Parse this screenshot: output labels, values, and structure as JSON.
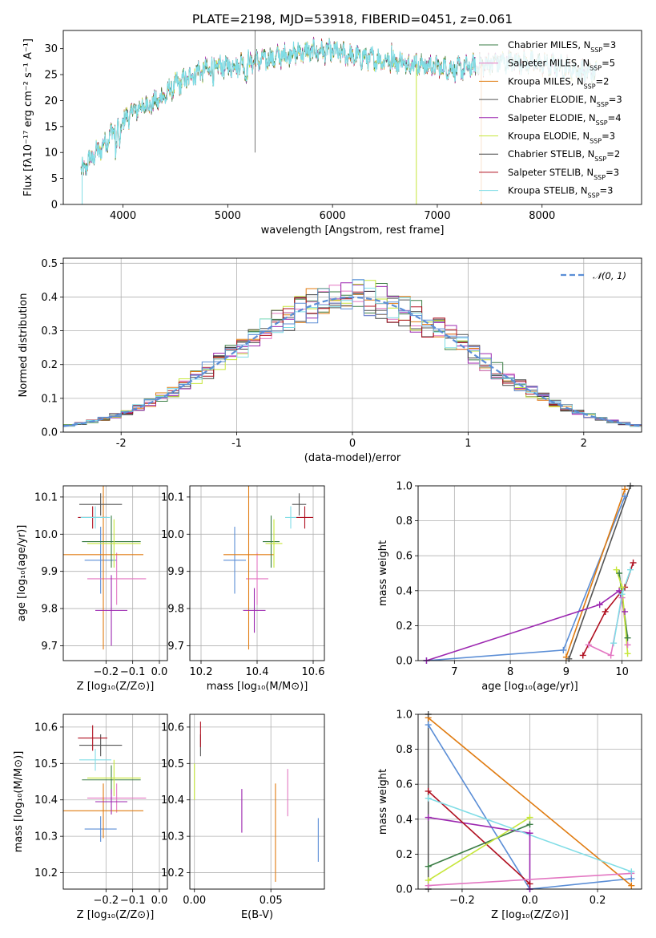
{
  "figure_title": "PLATE=2198, MJD=53918, FIBERID=0451, z=0.061",
  "series_names": [
    "Chabrier MILES",
    "Salpeter MILES",
    "Kroupa MILES",
    "Chabrier ELODIE",
    "Salpeter ELODIE",
    "Kroupa ELODIE",
    "Chabrier STELIB",
    "Salpeter STELIB",
    "Kroupa STELIB"
  ],
  "nssp": [
    3,
    5,
    2,
    3,
    4,
    3,
    2,
    3,
    3
  ],
  "colors": {
    "c0": "#3a7d44",
    "c1": "#e377c2",
    "c2": "#e07b10",
    "c3": "#555555",
    "c4": "#9c27b0",
    "c5": "#c6e63a",
    "c6": "#444444",
    "c7": "#b01020",
    "c8": "#80dde6",
    "blue": "#5b8ed6",
    "dashed": "#5b8ed6"
  },
  "legend2": "𝒩(0, 1)",
  "chart_data": [
    {
      "type": "line",
      "id": "spectrum",
      "title": "PLATE=2198, MJD=53918, FIBERID=0451, z=0.061",
      "xlabel": "wavelength [Angstrom, rest frame]",
      "ylabel": "Flux [fλ10⁻¹⁷ erg cm⁻² s⁻¹ A⁻¹]",
      "xlim": [
        3430,
        8950
      ],
      "ylim": [
        0,
        33.5
      ],
      "xticks": [
        4000,
        5000,
        6000,
        7000,
        8000
      ],
      "yticks": [
        0,
        5,
        10,
        15,
        20,
        25,
        30
      ],
      "continuum_knots": [
        [
          3600,
          6
        ],
        [
          3700,
          9
        ],
        [
          3800,
          11
        ],
        [
          3900,
          14
        ],
        [
          4000,
          16
        ],
        [
          4100,
          18
        ],
        [
          4200,
          19
        ],
        [
          4300,
          19.5
        ],
        [
          4400,
          21
        ],
        [
          4500,
          23
        ],
        [
          4600,
          24
        ],
        [
          4700,
          25.5
        ],
        [
          4800,
          26
        ],
        [
          4900,
          26.5
        ],
        [
          5000,
          26.5
        ],
        [
          5200,
          27.5
        ],
        [
          5400,
          28
        ],
        [
          5600,
          29
        ],
        [
          5800,
          29.5
        ],
        [
          6000,
          29.5
        ],
        [
          6200,
          28.5
        ],
        [
          6400,
          28
        ],
        [
          6600,
          27.5
        ],
        [
          6800,
          27
        ],
        [
          7000,
          26.5
        ],
        [
          7200,
          26
        ],
        [
          7400,
          26.8
        ],
        [
          7600,
          27.5
        ],
        [
          7800,
          27.5
        ],
        [
          8000,
          27
        ],
        [
          8200,
          26.5
        ],
        [
          8400,
          25.5
        ],
        [
          8500,
          25.5
        ]
      ],
      "legend_position": "upper right"
    },
    {
      "type": "line",
      "id": "residual-histogram",
      "xlabel": "(data-model)/error",
      "ylabel": "Normed distribution",
      "xlim": [
        -2.5,
        2.5
      ],
      "ylim": [
        0,
        0.515
      ],
      "xticks": [
        -2,
        -1,
        0,
        1,
        2
      ],
      "yticks": [
        0.0,
        0.1,
        0.2,
        0.3,
        0.4,
        0.5
      ],
      "bin_width": 0.1,
      "gaussian": {
        "mean": 0,
        "sigma": 1
      },
      "legend_position": "upper right"
    },
    {
      "type": "scatter",
      "id": "age-vs-Z",
      "xlabel": "Z [log₁₀(Z/Z⊙)]",
      "ylabel": "age  [log₁₀(age/yr)]",
      "xlim": [
        -0.36,
        0.03
      ],
      "ylim": [
        9.66,
        10.13
      ],
      "xticks": [
        -0.2,
        -0.1,
        0.0
      ],
      "xtick_labels": [
        "−0.2",
        "−0.1",
        "0.0"
      ],
      "yticks": [
        9.7,
        9.8,
        9.9,
        10.0,
        10.1
      ],
      "points": [
        {
          "x": -0.22,
          "y": 9.93,
          "xerr": 0.06,
          "yerr": 0.09,
          "c": "blue"
        },
        {
          "x": -0.16,
          "y": 9.88,
          "xerr": 0.11,
          "yerr": 0.07,
          "c": "c1"
        },
        {
          "x": -0.21,
          "y": 9.945,
          "xerr": 0.15,
          "yerr": 0.255,
          "c": "c2"
        },
        {
          "x": -0.18,
          "y": 9.98,
          "xerr": 0.11,
          "yerr": 0.07,
          "c": "c0"
        },
        {
          "x": -0.18,
          "y": 9.795,
          "xerr": 0.06,
          "yerr": 0.095,
          "c": "c4"
        },
        {
          "x": -0.17,
          "y": 9.975,
          "xerr": 0.1,
          "yerr": 0.065,
          "c": "c5"
        },
        {
          "x": -0.22,
          "y": 10.08,
          "xerr": 0.08,
          "yerr": 0.03,
          "c": "c3"
        },
        {
          "x": -0.25,
          "y": 10.045,
          "xerr": 0.055,
          "yerr": 0.03,
          "c": "c7"
        },
        {
          "x": -0.24,
          "y": 10.045,
          "xerr": 0.055,
          "yerr": 0.03,
          "c": "c8"
        }
      ]
    },
    {
      "type": "scatter",
      "id": "age-vs-mass",
      "xlabel": "mass [log₁₀(M/M⊙)]",
      "ylabel": "",
      "xlim": [
        10.16,
        10.64
      ],
      "ylim": [
        9.66,
        10.13
      ],
      "xticks": [
        10.2,
        10.4,
        10.6
      ],
      "yticks": [
        9.7,
        9.8,
        9.9,
        10.0,
        10.1
      ],
      "points": [
        {
          "x": 10.32,
          "y": 9.93,
          "xerr": 0.04,
          "yerr": 0.09,
          "c": "blue"
        },
        {
          "x": 10.4,
          "y": 9.88,
          "xerr": 0.04,
          "yerr": 0.07,
          "c": "c1"
        },
        {
          "x": 10.37,
          "y": 9.945,
          "xerr": 0.09,
          "yerr": 0.255,
          "c": "c2"
        },
        {
          "x": 10.45,
          "y": 9.98,
          "xerr": 0.03,
          "yerr": 0.07,
          "c": "c0"
        },
        {
          "x": 10.39,
          "y": 9.795,
          "xerr": 0.04,
          "yerr": 0.06,
          "c": "c4"
        },
        {
          "x": 10.46,
          "y": 9.975,
          "xerr": 0.03,
          "yerr": 0.065,
          "c": "c5"
        },
        {
          "x": 10.55,
          "y": 10.08,
          "xerr": 0.025,
          "yerr": 0.03,
          "c": "c3"
        },
        {
          "x": 10.57,
          "y": 10.045,
          "xerr": 0.03,
          "yerr": 0.03,
          "c": "c7"
        },
        {
          "x": 10.52,
          "y": 10.045,
          "xerr": 0.02,
          "yerr": 0.03,
          "c": "c8"
        }
      ]
    },
    {
      "type": "line",
      "id": "mass-weight-vs-age",
      "xlabel": "age  [log₁₀(age/yr)]",
      "ylabel": "mass weight",
      "xlim": [
        6.35,
        10.35
      ],
      "ylim": [
        0,
        1
      ],
      "xticks": [
        7,
        8,
        9,
        10
      ],
      "yticks": [
        0.0,
        0.2,
        0.4,
        0.6,
        0.8,
        1.0
      ],
      "series": [
        {
          "c": "blue",
          "pts": [
            [
              6.5,
              0.0
            ],
            [
              8.95,
              0.06
            ],
            [
              10.05,
              0.94
            ]
          ]
        },
        {
          "c": "c2",
          "pts": [
            [
              9.0,
              0.02
            ],
            [
              10.05,
              0.98
            ]
          ]
        },
        {
          "c": "c3",
          "pts": [
            [
              9.05,
              0.01
            ],
            [
              10.15,
              1.0
            ]
          ]
        },
        {
          "c": "c4",
          "pts": [
            [
              6.5,
              0.0
            ],
            [
              9.6,
              0.32
            ],
            [
              9.95,
              0.4
            ],
            [
              10.05,
              0.28
            ]
          ]
        },
        {
          "c": "c7",
          "pts": [
            [
              9.3,
              0.03
            ],
            [
              9.7,
              0.28
            ],
            [
              10.05,
              0.42
            ],
            [
              10.2,
              0.56
            ]
          ]
        },
        {
          "c": "c1",
          "pts": [
            [
              9.4,
              0.09
            ],
            [
              9.8,
              0.03
            ],
            [
              10.0,
              0.36
            ],
            [
              10.1,
              0.09
            ]
          ]
        },
        {
          "c": "c0",
          "pts": [
            [
              9.95,
              0.5
            ],
            [
              10.1,
              0.13
            ]
          ]
        },
        {
          "c": "c5",
          "pts": [
            [
              9.9,
              0.52
            ],
            [
              10.0,
              0.42
            ],
            [
              10.1,
              0.04
            ]
          ]
        },
        {
          "c": "c8",
          "pts": [
            [
              9.85,
              0.1
            ],
            [
              10.0,
              0.38
            ],
            [
              10.15,
              0.52
            ]
          ]
        }
      ]
    },
    {
      "type": "scatter",
      "id": "mass-vs-Z",
      "xlabel": "Z [log₁₀(Z/Z⊙)]",
      "ylabel": "mass [log₁₀(M/M⊙)]",
      "xlim": [
        -0.36,
        0.03
      ],
      "ylim": [
        10.155,
        10.635
      ],
      "xticks": [
        -0.2,
        -0.1,
        0.0
      ],
      "xtick_labels": [
        "−0.2",
        "−0.1",
        "0.0"
      ],
      "yticks": [
        10.2,
        10.3,
        10.4,
        10.5,
        10.6
      ],
      "points": [
        {
          "x": -0.22,
          "y": 10.32,
          "xerr": 0.06,
          "yerr": 0.035,
          "c": "blue"
        },
        {
          "x": -0.16,
          "y": 10.405,
          "xerr": 0.11,
          "yerr": 0.04,
          "c": "c1"
        },
        {
          "x": -0.21,
          "y": 10.37,
          "xerr": 0.15,
          "yerr": 0.075,
          "c": "c2"
        },
        {
          "x": -0.18,
          "y": 10.455,
          "xerr": 0.11,
          "yerr": 0.04,
          "c": "c0"
        },
        {
          "x": -0.18,
          "y": 10.395,
          "xerr": 0.06,
          "yerr": 0.035,
          "c": "c4"
        },
        {
          "x": -0.17,
          "y": 10.46,
          "xerr": 0.1,
          "yerr": 0.05,
          "c": "c5"
        },
        {
          "x": -0.22,
          "y": 10.55,
          "xerr": 0.08,
          "yerr": 0.03,
          "c": "c3"
        },
        {
          "x": -0.25,
          "y": 10.57,
          "xerr": 0.055,
          "yerr": 0.035,
          "c": "c7"
        },
        {
          "x": -0.24,
          "y": 10.51,
          "xerr": 0.06,
          "yerr": 0.03,
          "c": "c8"
        }
      ]
    },
    {
      "type": "scatter",
      "id": "mass-vs-ebv",
      "xlabel": "E(B-V)",
      "ylabel": "",
      "xlim": [
        -0.003,
        0.085
      ],
      "ylim": [
        10.155,
        10.635
      ],
      "xticks": [
        0.0,
        0.05
      ],
      "xtick_labels": [
        "0.00",
        "0.05"
      ],
      "yticks": [
        10.2,
        10.3,
        10.4,
        10.5,
        10.6
      ],
      "points": [
        {
          "x": 0.081,
          "y": 10.29,
          "xerr": 0,
          "yerr": 0.06,
          "c": "blue"
        },
        {
          "x": 0.061,
          "y": 10.42,
          "xerr": 0,
          "yerr": 0.065,
          "c": "c1"
        },
        {
          "x": 0.053,
          "y": 10.31,
          "xerr": 0,
          "yerr": 0.135,
          "c": "c2"
        },
        {
          "x": 0.031,
          "y": 10.37,
          "xerr": 0,
          "yerr": 0.06,
          "c": "c4"
        },
        {
          "x": 0.004,
          "y": 10.55,
          "xerr": 0,
          "yerr": 0.03,
          "c": "c3"
        },
        {
          "x": 0.004,
          "y": 10.58,
          "xerr": 0,
          "yerr": 0.035,
          "c": "c7"
        },
        {
          "x": 0.0,
          "y": 10.45,
          "xerr": 0,
          "yerr": 0.05,
          "c": "c5"
        }
      ]
    },
    {
      "type": "line",
      "id": "mass-weight-vs-Z",
      "xlabel": "Z [log₁₀(Z/Z⊙)]",
      "ylabel": "mass weight",
      "xlim": [
        -0.33,
        0.33
      ],
      "ylim": [
        0,
        1
      ],
      "xticks": [
        -0.2,
        0.0,
        0.2
      ],
      "xtick_labels": [
        "−0.2",
        "0.0",
        "0.2"
      ],
      "yticks": [
        0.0,
        0.2,
        0.4,
        0.6,
        0.8,
        1.0
      ],
      "series": [
        {
          "c": "blue",
          "pts": [
            [
              -0.3,
              0.94
            ],
            [
              0.0,
              0.0
            ],
            [
              0.3,
              0.06
            ]
          ]
        },
        {
          "c": "c2",
          "pts": [
            [
              -0.3,
              0.98
            ],
            [
              0.3,
              0.02
            ]
          ]
        },
        {
          "c": "c3",
          "pts": [
            [
              -0.3,
              1.0
            ],
            [
              -0.3,
              0.0
            ]
          ]
        },
        {
          "c": "c4",
          "pts": [
            [
              -0.3,
              0.41
            ],
            [
              0.0,
              0.32
            ],
            [
              0.0,
              0.0
            ]
          ]
        },
        {
          "c": "c7",
          "pts": [
            [
              -0.3,
              0.56
            ],
            [
              0.0,
              0.03
            ]
          ]
        },
        {
          "c": "c1",
          "pts": [
            [
              -0.3,
              0.02
            ],
            [
              0.3,
              0.09
            ]
          ]
        },
        {
          "c": "c0",
          "pts": [
            [
              -0.3,
              0.13
            ],
            [
              0.0,
              0.37
            ]
          ]
        },
        {
          "c": "c5",
          "pts": [
            [
              -0.3,
              0.05
            ],
            [
              0.0,
              0.41
            ]
          ]
        },
        {
          "c": "c8",
          "pts": [
            [
              -0.3,
              0.52
            ],
            [
              0.3,
              0.1
            ]
          ]
        }
      ]
    }
  ]
}
